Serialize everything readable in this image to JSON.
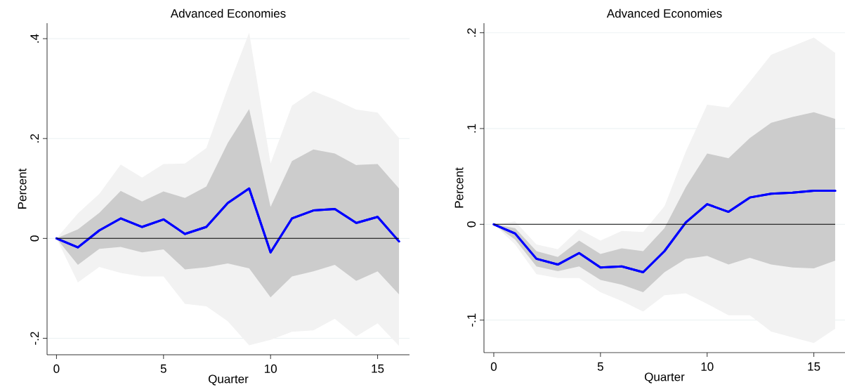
{
  "chart_data": [
    {
      "type": "line",
      "title": "Advanced Economies",
      "xlabel": "Quarter",
      "ylabel": "Percent",
      "x": [
        0,
        1,
        2,
        3,
        4,
        5,
        6,
        7,
        8,
        9,
        10,
        11,
        12,
        13,
        14,
        15,
        16
      ],
      "series": [
        {
          "color": "#0000ff",
          "values": [
            0,
            -0.018,
            0.016,
            0.04,
            0.023,
            0.038,
            0.009,
            0.023,
            0.071,
            0.1,
            -0.028,
            0.04,
            0.056,
            0.059,
            0.031,
            0.043,
            -0.006
          ],
          "upper": [
            0,
            0.05,
            0.089,
            0.148,
            0.122,
            0.149,
            0.15,
            0.181,
            0.301,
            0.412,
            0.15,
            0.266,
            0.295,
            0.278,
            0.258,
            0.252,
            0.201
          ],
          "lower": [
            0,
            -0.088,
            -0.057,
            -0.069,
            -0.076,
            -0.076,
            -0.131,
            -0.136,
            -0.166,
            -0.214,
            -0.203,
            -0.187,
            -0.184,
            -0.161,
            -0.196,
            -0.17,
            -0.215
          ]
        },
        {
          "color": "#0000ff",
          "values": [
            0,
            -0.018,
            0.016,
            0.04,
            0.023,
            0.038,
            0.009,
            0.023,
            0.071,
            0.1,
            -0.028,
            0.04,
            0.056,
            0.059,
            0.031,
            0.043,
            -0.006
          ],
          "upper": [
            0,
            0.018,
            0.051,
            0.095,
            0.074,
            0.094,
            0.081,
            0.104,
            0.191,
            0.259,
            0.063,
            0.155,
            0.178,
            0.17,
            0.147,
            0.149,
            0.1
          ],
          "lower": [
            0,
            -0.053,
            -0.021,
            -0.017,
            -0.028,
            -0.022,
            -0.062,
            -0.058,
            -0.05,
            -0.06,
            -0.118,
            -0.076,
            -0.066,
            -0.053,
            -0.085,
            -0.066,
            -0.112
          ]
        }
      ],
      "ref_lines": [
        {
          "axis": "y",
          "value": 0,
          "color": "#000000"
        }
      ],
      "xlim": [
        -0.44,
        16.49
      ],
      "ylim": [
        -0.233,
        0.431
      ],
      "xticks": [
        0,
        5,
        10,
        15
      ],
      "yticks": [
        {
          "value": -0.2,
          "label": "-.2"
        },
        0,
        {
          "value": 0.2,
          "label": ".2"
        },
        {
          "value": 0.4,
          "label": ".4"
        }
      ],
      "grid": "y"
    },
    {
      "type": "line",
      "title": "Advanced Economies",
      "xlabel": "Quarter",
      "ylabel": "Percent",
      "x": [
        0,
        1,
        2,
        3,
        4,
        5,
        6,
        7,
        8,
        9,
        10,
        11,
        12,
        13,
        14,
        15,
        16
      ],
      "series": [
        {
          "color": "#0000ff",
          "values": [
            0,
            -0.0096,
            -0.036,
            -0.042,
            -0.03,
            -0.045,
            -0.044,
            -0.05,
            -0.028,
            0.002,
            0.021,
            0.013,
            0.028,
            0.032,
            0.033,
            0.035,
            0.035
          ],
          "upper": [
            0,
            0.003,
            -0.021,
            -0.026,
            -0.005,
            -0.017,
            -0.007,
            -0.008,
            0.019,
            0.076,
            0.125,
            0.122,
            0.149,
            0.177,
            0.186,
            0.195,
            0.179
          ],
          "lower": [
            0,
            -0.021,
            -0.052,
            -0.056,
            -0.056,
            -0.071,
            -0.08,
            -0.091,
            -0.074,
            -0.072,
            -0.083,
            -0.095,
            -0.095,
            -0.112,
            -0.118,
            -0.124,
            -0.109
          ]
        },
        {
          "color": "#0000ff",
          "values": [
            0,
            -0.0096,
            -0.036,
            -0.042,
            -0.03,
            -0.045,
            -0.044,
            -0.05,
            -0.028,
            0.002,
            0.021,
            0.013,
            0.028,
            0.032,
            0.033,
            0.035,
            0.035
          ],
          "upper": [
            0,
            -0.004,
            -0.028,
            -0.034,
            -0.017,
            -0.031,
            -0.025,
            -0.028,
            -0.004,
            0.039,
            0.074,
            0.069,
            0.09,
            0.106,
            0.112,
            0.117,
            0.11
          ],
          "lower": [
            0,
            -0.016,
            -0.044,
            -0.049,
            -0.044,
            -0.058,
            -0.063,
            -0.071,
            -0.05,
            -0.036,
            -0.033,
            -0.042,
            -0.035,
            -0.042,
            -0.045,
            -0.046,
            -0.038
          ]
        }
      ],
      "ref_lines": [
        {
          "axis": "y",
          "value": 0,
          "color": "#000000"
        }
      ],
      "xlim": [
        -0.46,
        16.46
      ],
      "ylim": [
        -0.134,
        0.21
      ],
      "xticks": [
        0,
        5,
        10,
        15
      ],
      "yticks": [
        {
          "value": -0.1,
          "label": "-.1"
        },
        0,
        {
          "value": 0.1,
          "label": ".1"
        },
        {
          "value": 0.2,
          "label": ".2"
        }
      ],
      "grid": "y"
    }
  ]
}
